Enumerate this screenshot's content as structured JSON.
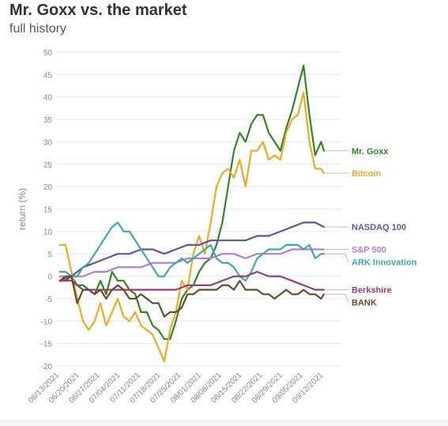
{
  "chart_data": {
    "type": "line",
    "title": "Mr. Goxx vs. the market",
    "subtitle": "full history",
    "xlabel": "",
    "ylabel": "return (%)",
    "ylim": [
      -20,
      50
    ],
    "yticks": [
      -20,
      -15,
      -10,
      -5,
      0,
      5,
      10,
      15,
      20,
      25,
      30,
      35,
      40,
      45,
      50
    ],
    "xlim": [
      "2021-06-13",
      "2021-09-19"
    ],
    "xtick_labels": [
      "06/13/2021",
      "06/20/2021",
      "06/27/2021",
      "07/04/2021",
      "07/11/2021",
      "07/18/2021",
      "07/25/2021",
      "08/01/2021",
      "08/08/2021",
      "08/15/2021",
      "08/22/2021",
      "08/29/2021",
      "09/05/2021",
      "09/12/2021"
    ],
    "grid": "horizontal",
    "legend": "direct labels at right end of lines",
    "series": [
      {
        "name": "Mr. Goxx",
        "color": "#2a8a1c",
        "points": [
          [
            "2021-06-14",
            -1
          ],
          [
            "2021-06-16",
            -1
          ],
          [
            "2021-06-18",
            0
          ],
          [
            "2021-06-20",
            -2
          ],
          [
            "2021-06-22",
            -2
          ],
          [
            "2021-06-24",
            -3
          ],
          [
            "2021-06-26",
            -4
          ],
          [
            "2021-06-28",
            -1
          ],
          [
            "2021-06-30",
            -4
          ],
          [
            "2021-07-02",
            1
          ],
          [
            "2021-07-04",
            -1
          ],
          [
            "2021-07-06",
            -1
          ],
          [
            "2021-07-08",
            -3
          ],
          [
            "2021-07-10",
            -4
          ],
          [
            "2021-07-12",
            -8
          ],
          [
            "2021-07-14",
            -8
          ],
          [
            "2021-07-16",
            -11
          ],
          [
            "2021-07-18",
            -12
          ],
          [
            "2021-07-20",
            -14
          ],
          [
            "2021-07-22",
            -14
          ],
          [
            "2021-07-24",
            -10
          ],
          [
            "2021-07-26",
            -5
          ],
          [
            "2021-07-28",
            -3
          ],
          [
            "2021-07-30",
            -2
          ],
          [
            "2021-08-01",
            1
          ],
          [
            "2021-08-03",
            3
          ],
          [
            "2021-08-05",
            4
          ],
          [
            "2021-08-07",
            7
          ],
          [
            "2021-08-09",
            12
          ],
          [
            "2021-08-11",
            20
          ],
          [
            "2021-08-13",
            28
          ],
          [
            "2021-08-15",
            32
          ],
          [
            "2021-08-17",
            30
          ],
          [
            "2021-08-19",
            34
          ],
          [
            "2021-08-21",
            36
          ],
          [
            "2021-08-23",
            36
          ],
          [
            "2021-08-25",
            32
          ],
          [
            "2021-08-27",
            30
          ],
          [
            "2021-08-29",
            28
          ],
          [
            "2021-08-31",
            33
          ],
          [
            "2021-09-02",
            37
          ],
          [
            "2021-09-04",
            42
          ],
          [
            "2021-09-06",
            47
          ],
          [
            "2021-09-08",
            36
          ],
          [
            "2021-09-10",
            27
          ],
          [
            "2021-09-12",
            30
          ],
          [
            "2021-09-13",
            28
          ]
        ]
      },
      {
        "name": "Bitcoin",
        "color": "#f0a81c",
        "points": [
          [
            "2021-06-14",
            7
          ],
          [
            "2021-06-16",
            7
          ],
          [
            "2021-06-18",
            1
          ],
          [
            "2021-06-20",
            -5
          ],
          [
            "2021-06-22",
            -10
          ],
          [
            "2021-06-24",
            -12
          ],
          [
            "2021-06-26",
            -10
          ],
          [
            "2021-06-28",
            -6
          ],
          [
            "2021-06-30",
            -11
          ],
          [
            "2021-07-02",
            -8
          ],
          [
            "2021-07-04",
            -5
          ],
          [
            "2021-07-06",
            -9
          ],
          [
            "2021-07-08",
            -10
          ],
          [
            "2021-07-10",
            -8
          ],
          [
            "2021-07-12",
            -11
          ],
          [
            "2021-07-14",
            -12
          ],
          [
            "2021-07-16",
            -13
          ],
          [
            "2021-07-18",
            -16
          ],
          [
            "2021-07-20",
            -19
          ],
          [
            "2021-07-22",
            -12
          ],
          [
            "2021-07-24",
            -8
          ],
          [
            "2021-07-26",
            -1
          ],
          [
            "2021-07-28",
            -3
          ],
          [
            "2021-07-30",
            5
          ],
          [
            "2021-08-01",
            9
          ],
          [
            "2021-08-03",
            5
          ],
          [
            "2021-08-05",
            12
          ],
          [
            "2021-08-07",
            20
          ],
          [
            "2021-08-09",
            23
          ],
          [
            "2021-08-11",
            24
          ],
          [
            "2021-08-13",
            22
          ],
          [
            "2021-08-15",
            26
          ],
          [
            "2021-08-17",
            20
          ],
          [
            "2021-08-19",
            28
          ],
          [
            "2021-08-21",
            28
          ],
          [
            "2021-08-23",
            30
          ],
          [
            "2021-08-25",
            26
          ],
          [
            "2021-08-27",
            27
          ],
          [
            "2021-08-29",
            26
          ],
          [
            "2021-08-31",
            32
          ],
          [
            "2021-09-02",
            35
          ],
          [
            "2021-09-04",
            36
          ],
          [
            "2021-09-06",
            41
          ],
          [
            "2021-09-08",
            30
          ],
          [
            "2021-09-10",
            24
          ],
          [
            "2021-09-12",
            24
          ],
          [
            "2021-09-13",
            23
          ]
        ]
      },
      {
        "name": "NASDAQ 100",
        "color": "#6a4f9e",
        "points": [
          [
            "2021-06-14",
            -1
          ],
          [
            "2021-06-18",
            0
          ],
          [
            "2021-06-22",
            2
          ],
          [
            "2021-06-26",
            3
          ],
          [
            "2021-06-30",
            4
          ],
          [
            "2021-07-04",
            5
          ],
          [
            "2021-07-08",
            5
          ],
          [
            "2021-07-12",
            6
          ],
          [
            "2021-07-16",
            6
          ],
          [
            "2021-07-20",
            5
          ],
          [
            "2021-07-24",
            6
          ],
          [
            "2021-07-28",
            7
          ],
          [
            "2021-08-01",
            7
          ],
          [
            "2021-08-05",
            8
          ],
          [
            "2021-08-09",
            8
          ],
          [
            "2021-08-13",
            8
          ],
          [
            "2021-08-17",
            8
          ],
          [
            "2021-08-21",
            9
          ],
          [
            "2021-08-25",
            9
          ],
          [
            "2021-08-29",
            10
          ],
          [
            "2021-09-02",
            11
          ],
          [
            "2021-09-06",
            12
          ],
          [
            "2021-09-10",
            12
          ],
          [
            "2021-09-13",
            11
          ]
        ]
      },
      {
        "name": "S&P 500",
        "color": "#b47ad8",
        "points": [
          [
            "2021-06-14",
            0
          ],
          [
            "2021-06-18",
            0
          ],
          [
            "2021-06-22",
            0
          ],
          [
            "2021-06-26",
            1
          ],
          [
            "2021-06-30",
            1
          ],
          [
            "2021-07-04",
            2
          ],
          [
            "2021-07-08",
            2
          ],
          [
            "2021-07-12",
            2
          ],
          [
            "2021-07-16",
            3
          ],
          [
            "2021-07-20",
            3
          ],
          [
            "2021-07-24",
            3
          ],
          [
            "2021-07-28",
            4
          ],
          [
            "2021-08-01",
            4
          ],
          [
            "2021-08-05",
            4
          ],
          [
            "2021-08-09",
            5
          ],
          [
            "2021-08-13",
            5
          ],
          [
            "2021-08-17",
            4
          ],
          [
            "2021-08-21",
            5
          ],
          [
            "2021-08-25",
            5
          ],
          [
            "2021-08-29",
            5
          ],
          [
            "2021-09-02",
            6
          ],
          [
            "2021-09-06",
            6
          ],
          [
            "2021-09-10",
            6
          ],
          [
            "2021-09-13",
            6
          ]
        ]
      },
      {
        "name": "ARK Innovation",
        "color": "#3aa9b0",
        "points": [
          [
            "2021-06-14",
            1
          ],
          [
            "2021-06-16",
            1
          ],
          [
            "2021-06-18",
            0
          ],
          [
            "2021-06-20",
            0
          ],
          [
            "2021-06-22",
            2
          ],
          [
            "2021-06-24",
            3
          ],
          [
            "2021-06-26",
            5
          ],
          [
            "2021-06-28",
            7
          ],
          [
            "2021-06-30",
            9
          ],
          [
            "2021-07-02",
            11
          ],
          [
            "2021-07-04",
            12
          ],
          [
            "2021-07-06",
            10
          ],
          [
            "2021-07-08",
            10
          ],
          [
            "2021-07-10",
            8
          ],
          [
            "2021-07-12",
            6
          ],
          [
            "2021-07-14",
            4
          ],
          [
            "2021-07-16",
            2
          ],
          [
            "2021-07-18",
            0
          ],
          [
            "2021-07-20",
            0
          ],
          [
            "2021-07-22",
            2
          ],
          [
            "2021-07-24",
            3
          ],
          [
            "2021-07-26",
            4
          ],
          [
            "2021-07-28",
            3
          ],
          [
            "2021-07-30",
            4
          ],
          [
            "2021-08-01",
            5
          ],
          [
            "2021-08-03",
            6
          ],
          [
            "2021-08-05",
            7
          ],
          [
            "2021-08-07",
            4
          ],
          [
            "2021-08-09",
            3
          ],
          [
            "2021-08-11",
            3
          ],
          [
            "2021-08-13",
            2
          ],
          [
            "2021-08-15",
            0
          ],
          [
            "2021-08-17",
            -1
          ],
          [
            "2021-08-19",
            1
          ],
          [
            "2021-08-21",
            4
          ],
          [
            "2021-08-23",
            5
          ],
          [
            "2021-08-25",
            6
          ],
          [
            "2021-08-27",
            6
          ],
          [
            "2021-08-29",
            6
          ],
          [
            "2021-08-31",
            7
          ],
          [
            "2021-09-02",
            7
          ],
          [
            "2021-09-04",
            7
          ],
          [
            "2021-09-06",
            6
          ],
          [
            "2021-09-08",
            7
          ],
          [
            "2021-09-10",
            4
          ],
          [
            "2021-09-12",
            5
          ],
          [
            "2021-09-13",
            5
          ]
        ]
      },
      {
        "name": "Berkshire",
        "color": "#9b3a7a",
        "points": [
          [
            "2021-06-14",
            -1
          ],
          [
            "2021-06-18",
            -1
          ],
          [
            "2021-06-22",
            -3
          ],
          [
            "2021-06-26",
            -3
          ],
          [
            "2021-06-30",
            -3
          ],
          [
            "2021-07-04",
            -3
          ],
          [
            "2021-07-08",
            -3
          ],
          [
            "2021-07-12",
            -3
          ],
          [
            "2021-07-16",
            -3
          ],
          [
            "2021-07-20",
            -3
          ],
          [
            "2021-07-24",
            -3
          ],
          [
            "2021-07-28",
            -2
          ],
          [
            "2021-08-01",
            -2
          ],
          [
            "2021-08-05",
            -2
          ],
          [
            "2021-08-09",
            -1
          ],
          [
            "2021-08-13",
            0
          ],
          [
            "2021-08-17",
            0
          ],
          [
            "2021-08-21",
            1
          ],
          [
            "2021-08-25",
            0
          ],
          [
            "2021-08-29",
            0
          ],
          [
            "2021-09-02",
            -1
          ],
          [
            "2021-09-06",
            -2
          ],
          [
            "2021-09-10",
            -3
          ],
          [
            "2021-09-13",
            -3
          ]
        ]
      },
      {
        "name": "BANK",
        "color": "#6b4a2a",
        "points": [
          [
            "2021-06-14",
            -1
          ],
          [
            "2021-06-16",
            0
          ],
          [
            "2021-06-18",
            0
          ],
          [
            "2021-06-20",
            -6
          ],
          [
            "2021-06-22",
            -3
          ],
          [
            "2021-06-24",
            -3
          ],
          [
            "2021-06-26",
            -4
          ],
          [
            "2021-06-28",
            -3
          ],
          [
            "2021-06-30",
            -5
          ],
          [
            "2021-07-02",
            -3
          ],
          [
            "2021-07-04",
            -2
          ],
          [
            "2021-07-06",
            -3
          ],
          [
            "2021-07-08",
            -5
          ],
          [
            "2021-07-10",
            -5
          ],
          [
            "2021-07-12",
            -4
          ],
          [
            "2021-07-14",
            -5
          ],
          [
            "2021-07-16",
            -6
          ],
          [
            "2021-07-18",
            -6
          ],
          [
            "2021-07-20",
            -9
          ],
          [
            "2021-07-22",
            -8
          ],
          [
            "2021-07-24",
            -8
          ],
          [
            "2021-07-26",
            -7
          ],
          [
            "2021-07-28",
            -4
          ],
          [
            "2021-07-30",
            -4
          ],
          [
            "2021-08-01",
            -3
          ],
          [
            "2021-08-03",
            -3
          ],
          [
            "2021-08-05",
            -3
          ],
          [
            "2021-08-07",
            -3
          ],
          [
            "2021-08-09",
            -2
          ],
          [
            "2021-08-11",
            -2
          ],
          [
            "2021-08-13",
            -3
          ],
          [
            "2021-08-15",
            -1
          ],
          [
            "2021-08-17",
            -3
          ],
          [
            "2021-08-19",
            -3
          ],
          [
            "2021-08-21",
            -3
          ],
          [
            "2021-08-23",
            -4
          ],
          [
            "2021-08-25",
            -4
          ],
          [
            "2021-08-27",
            -5
          ],
          [
            "2021-08-29",
            -4
          ],
          [
            "2021-08-31",
            -3
          ],
          [
            "2021-09-02",
            -4
          ],
          [
            "2021-09-04",
            -4
          ],
          [
            "2021-09-06",
            -3
          ],
          [
            "2021-09-08",
            -4
          ],
          [
            "2021-09-10",
            -4
          ],
          [
            "2021-09-12",
            -5
          ],
          [
            "2021-09-13",
            -4
          ]
        ]
      }
    ]
  }
}
